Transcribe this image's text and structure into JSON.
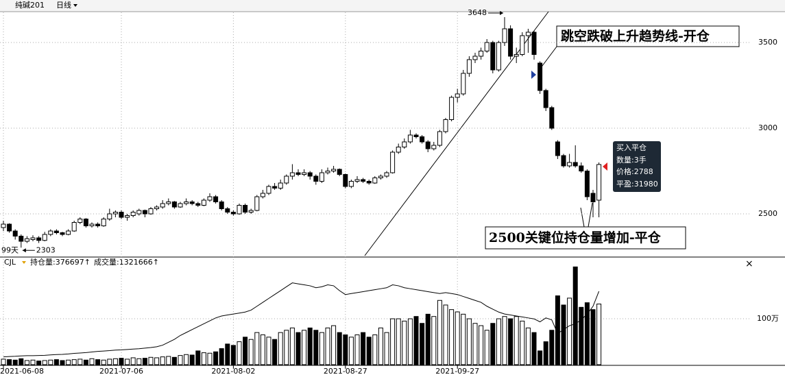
{
  "toolbar": {
    "symbol": "纯碱201",
    "period": "日线"
  },
  "chart_data": [
    {
      "type": "candlestick",
      "categories": [
        "2021-06-08",
        null,
        null,
        null,
        null,
        null,
        null,
        null,
        null,
        null,
        null,
        null,
        null,
        null,
        null,
        null,
        null,
        null,
        null,
        null,
        "2021-07-06",
        null,
        null,
        null,
        null,
        null,
        null,
        null,
        null,
        null,
        null,
        null,
        null,
        null,
        null,
        null,
        null,
        null,
        null,
        "2021-08-02",
        null,
        null,
        null,
        null,
        null,
        null,
        null,
        null,
        null,
        null,
        null,
        null,
        null,
        null,
        null,
        null,
        null,
        null,
        "2021-08-27",
        null,
        null,
        null,
        null,
        null,
        null,
        null,
        null,
        null,
        null,
        null,
        null,
        null,
        null,
        null,
        null,
        null,
        null,
        "2021-09-27",
        null,
        null,
        null,
        null,
        null,
        null,
        null,
        null,
        null,
        null,
        null,
        null,
        null,
        null,
        null,
        null,
        null,
        null,
        null,
        null,
        null,
        null,
        null,
        null
      ],
      "open": [
        2420,
        2440,
        2400,
        2370,
        2340,
        2350,
        2360,
        2345,
        2380,
        2400,
        2390,
        2380,
        2400,
        2450,
        2470,
        2430,
        2440,
        2430,
        2470,
        2500,
        2510,
        2480,
        2490,
        2500,
        2520,
        2500,
        2530,
        2540,
        2560,
        2570,
        2540,
        2560,
        2570,
        2560,
        2550,
        2580,
        2600,
        2570,
        2530,
        2510,
        2500,
        2550,
        2510,
        2520,
        2600,
        2620,
        2660,
        2650,
        2680,
        2720,
        2740,
        2730,
        2740,
        2720,
        2690,
        2740,
        2750,
        2760,
        2730,
        2660,
        2690,
        2700,
        2690,
        2680,
        2710,
        2720,
        2740,
        2860,
        2890,
        2920,
        2960,
        2950,
        2920,
        2880,
        2900,
        2980,
        3050,
        3180,
        3200,
        3320,
        3400,
        3420,
        3450,
        3500,
        3340,
        3500,
        3580,
        3420,
        3430,
        3540,
        3560,
        3380,
        3220,
        3120,
        2920,
        2840,
        2780,
        2800,
        2780,
        2750,
        2620,
        2580
      ],
      "high": [
        2460,
        2445,
        2410,
        2380,
        2370,
        2375,
        2370,
        2395,
        2410,
        2410,
        2395,
        2410,
        2460,
        2480,
        2475,
        2450,
        2450,
        2480,
        2530,
        2520,
        2520,
        2500,
        2520,
        2530,
        2525,
        2540,
        2550,
        2580,
        2590,
        2575,
        2570,
        2590,
        2580,
        2570,
        2590,
        2620,
        2610,
        2580,
        2540,
        2520,
        2560,
        2560,
        2530,
        2610,
        2640,
        2670,
        2680,
        2700,
        2730,
        2790,
        2760,
        2760,
        2750,
        2730,
        2760,
        2770,
        2780,
        2765,
        2735,
        2700,
        2720,
        2710,
        2700,
        2720,
        2730,
        2750,
        2870,
        2910,
        2940,
        2990,
        2970,
        2960,
        2930,
        2920,
        2990,
        3060,
        3190,
        3230,
        3340,
        3420,
        3440,
        3470,
        3520,
        3510,
        3510,
        3648,
        3600,
        3470,
        3560,
        3580,
        3570,
        3390,
        3230,
        3130,
        2930,
        2850,
        2850,
        2900,
        2800,
        2760,
        2640,
        2800
      ],
      "low": [
        2400,
        2390,
        2350,
        2303,
        2330,
        2340,
        2330,
        2340,
        2370,
        2380,
        2370,
        2375,
        2395,
        2440,
        2420,
        2420,
        2420,
        2425,
        2460,
        2480,
        2470,
        2460,
        2480,
        2490,
        2480,
        2495,
        2520,
        2530,
        2550,
        2530,
        2535,
        2550,
        2550,
        2540,
        2545,
        2570,
        2560,
        2520,
        2500,
        2490,
        2495,
        2500,
        2500,
        2515,
        2590,
        2610,
        2640,
        2640,
        2670,
        2700,
        2720,
        2720,
        2700,
        2670,
        2680,
        2730,
        2740,
        2720,
        2650,
        2650,
        2680,
        2680,
        2670,
        2675,
        2700,
        2710,
        2735,
        2850,
        2880,
        2910,
        2940,
        2910,
        2860,
        2870,
        2890,
        2970,
        3040,
        3150,
        3190,
        3300,
        3380,
        3400,
        3440,
        3320,
        3330,
        3480,
        3400,
        3380,
        3420,
        3440,
        3400,
        3200,
        3100,
        2990,
        2820,
        2770,
        2770,
        2770,
        2740,
        2580,
        2480,
        2480
      ],
      "close": [
        2440,
        2400,
        2370,
        2340,
        2355,
        2360,
        2345,
        2380,
        2400,
        2390,
        2380,
        2400,
        2450,
        2470,
        2430,
        2440,
        2430,
        2470,
        2500,
        2510,
        2480,
        2490,
        2510,
        2520,
        2500,
        2530,
        2540,
        2560,
        2570,
        2540,
        2560,
        2570,
        2560,
        2550,
        2580,
        2600,
        2570,
        2530,
        2510,
        2500,
        2550,
        2510,
        2520,
        2600,
        2620,
        2660,
        2650,
        2680,
        2720,
        2740,
        2730,
        2740,
        2720,
        2690,
        2740,
        2750,
        2760,
        2730,
        2660,
        2690,
        2700,
        2690,
        2680,
        2710,
        2720,
        2740,
        2860,
        2890,
        2920,
        2960,
        2950,
        2920,
        2880,
        2900,
        2980,
        3050,
        3180,
        3200,
        3320,
        3400,
        3420,
        3450,
        3500,
        3340,
        3500,
        3580,
        3420,
        3430,
        3540,
        3560,
        3430,
        3220,
        3120,
        3000,
        2840,
        2780,
        2800,
        2780,
        2750,
        2600,
        2570,
        2788
      ],
      "up_color": "#ffffff",
      "down_color": "#000000",
      "grid": true,
      "ylim": [
        2260,
        3680
      ],
      "yticks": [
        2500,
        3000,
        3500
      ],
      "annotations": {
        "days": "99天",
        "callout_open": "跳空跌破上升趋势线-开仓",
        "callout_close": "2500关键位持仓量增加-平仓",
        "tooltip": [
          "买入平仓",
          "数量:3手",
          "价格:2788",
          "平盈:31980"
        ]
      }
    },
    {
      "type": "bar",
      "header": [
        "CJL",
        "持仓量:376697↑",
        "成交量:1321666↑"
      ],
      "series": [
        {
          "type": "bar",
          "values": [
            120000,
            110000,
            100000,
            130000,
            90000,
            100000,
            80000,
            90000,
            100000,
            110000,
            90000,
            100000,
            110000,
            120000,
            100000,
            130000,
            110000,
            100000,
            120000,
            130000,
            140000,
            120000,
            150000,
            130000,
            140000,
            160000,
            150000,
            170000,
            180000,
            160000,
            200000,
            220000,
            210000,
            300000,
            260000,
            250000,
            280000,
            350000,
            450000,
            420000,
            500000,
            600000,
            550000,
            700000,
            650000,
            600000,
            550000,
            700000,
            750000,
            800000,
            700000,
            750000,
            800000,
            750000,
            700000,
            800000,
            850000,
            700000,
            650000,
            600000,
            650000,
            700000,
            600000,
            650000,
            800000,
            700000,
            1000000,
            1000000,
            950000,
            1000000,
            1050000,
            900000,
            1100000,
            1050000,
            1400000,
            1300000,
            1200000,
            1150000,
            1100000,
            1000000,
            900000,
            850000,
            750000,
            900000,
            1000000,
            1050000,
            1000000,
            1050000,
            950000,
            800000,
            700000,
            300000,
            500000,
            750000,
            1500000,
            1300000,
            1450000,
            2130000,
            1250000,
            1350000,
            1200000,
            1321666
          ]
        },
        {
          "type": "line",
          "axis": "y2",
          "color": "#000000",
          "values": [
            40000,
            42000,
            43000,
            45000,
            46000,
            46000,
            47000,
            48000,
            50000,
            52000,
            53000,
            55000,
            58000,
            60000,
            62000,
            65000,
            68000,
            70000,
            72000,
            75000,
            76000,
            78000,
            80000,
            82000,
            85000,
            88000,
            92000,
            100000,
            115000,
            130000,
            150000,
            165000,
            180000,
            195000,
            210000,
            225000,
            240000,
            250000,
            255000,
            260000,
            265000,
            270000,
            280000,
            300000,
            320000,
            340000,
            360000,
            380000,
            400000,
            420000,
            415000,
            410000,
            405000,
            395000,
            400000,
            410000,
            405000,
            380000,
            360000,
            365000,
            370000,
            375000,
            380000,
            385000,
            390000,
            395000,
            410000,
            405000,
            395000,
            390000,
            385000,
            380000,
            375000,
            370000,
            365000,
            370000,
            365000,
            360000,
            350000,
            340000,
            330000,
            320000,
            300000,
            285000,
            270000,
            260000,
            255000,
            250000,
            245000,
            240000,
            235000,
            220000,
            240000,
            230000,
            160000,
            180000,
            200000,
            210000,
            230000,
            260000,
            300000,
            376697
          ]
        }
      ],
      "ylim": [
        0,
        2300000
      ],
      "yticks": [
        {
          "value": 1000000,
          "label": "100万"
        }
      ],
      "y2lim": [
        0,
        542000
      ],
      "grid": true
    }
  ]
}
